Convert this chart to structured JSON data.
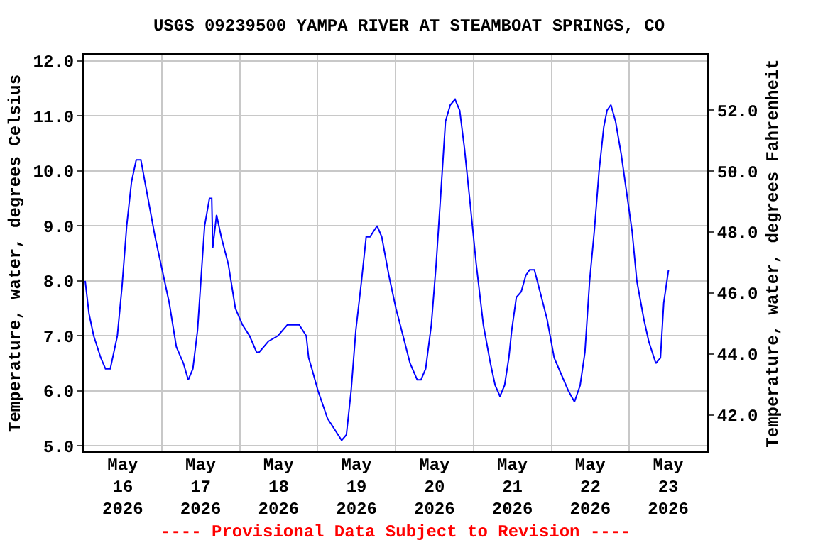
{
  "chart_data": {
    "type": "line",
    "title": "USGS 09239500 YAMPA RIVER AT STEAMBOAT SPRINGS, CO",
    "ylabel": "Temperature, water, degrees Celsius",
    "y2label": "Temperature, water, degrees Fahrenheit",
    "annotations": [
      "---- Provisional Data Subject to Revision ----"
    ],
    "x": [
      "2026-05-16T00:26",
      "2026-05-16T01:37",
      "2026-05-16T03:03",
      "2026-05-16T05:14",
      "2026-05-16T06:41",
      "2026-05-16T08:10",
      "2026-05-16T10:20",
      "2026-05-16T11:47",
      "2026-05-16T13:13",
      "2026-05-16T14:42",
      "2026-05-16T16:09",
      "2026-05-16T17:35",
      "2026-05-16T19:46",
      "2026-05-16T21:57",
      "2026-05-17T00:08",
      "2026-05-17T02:19",
      "2026-05-17T04:30",
      "2026-05-17T06:41",
      "2026-05-17T08:10",
      "2026-05-17T09:36",
      "2026-05-17T11:02",
      "2026-05-17T12:31",
      "2026-05-17T13:13",
      "2026-05-17T14:42",
      "2026-05-17T15:24",
      "2026-05-17T15:43",
      "2026-05-17T16:53",
      "2026-05-17T18:20",
      "2026-05-17T20:31",
      "2026-05-17T22:41",
      "2026-05-18T00:52",
      "2026-05-18T03:03",
      "2026-05-18T05:14",
      "2026-05-18T05:59",
      "2026-05-18T08:52",
      "2026-05-18T11:47",
      "2026-05-18T14:42",
      "2026-05-18T16:53",
      "2026-05-18T18:20",
      "2026-05-18T20:31",
      "2026-05-18T21:15",
      "2026-05-18T22:15",
      "2026-05-19T00:08",
      "2026-05-19T03:03",
      "2026-05-19T05:14",
      "2026-05-19T07:25",
      "2026-05-19T08:52",
      "2026-05-19T10:20",
      "2026-05-19T11:47",
      "2026-05-19T13:32",
      "2026-05-19T14:58",
      "2026-05-19T16:09",
      "2026-05-19T18:20",
      "2026-05-19T19:46",
      "2026-05-19T21:57",
      "2026-05-20T00:08",
      "2026-05-20T02:19",
      "2026-05-20T04:29",
      "2026-05-20T06:41",
      "2026-05-20T07:51",
      "2026-05-20T09:17",
      "2026-05-20T11:02",
      "2026-05-20T12:31",
      "2026-05-20T13:58",
      "2026-05-20T15:24",
      "2026-05-20T16:53",
      "2026-05-20T18:20",
      "2026-05-20T19:46",
      "2026-05-20T21:15",
      "2026-05-20T23:00",
      "2026-05-21T00:52",
      "2026-05-21T03:03",
      "2026-05-21T05:14",
      "2026-05-21T06:41",
      "2026-05-21T08:10",
      "2026-05-21T09:36",
      "2026-05-21T10:54",
      "2026-05-21T11:47",
      "2026-05-21T13:13",
      "2026-05-21T14:42",
      "2026-05-21T16:09",
      "2026-05-21T17:19",
      "2026-05-21T18:46",
      "2026-05-21T20:31",
      "2026-05-21T22:41",
      "2026-05-22T00:52",
      "2026-05-22T03:03",
      "2026-05-22T05:14",
      "2026-05-22T07:07",
      "2026-05-22T08:52",
      "2026-05-22T10:20",
      "2026-05-22T11:47",
      "2026-05-22T13:13",
      "2026-05-22T14:42",
      "2026-05-22T16:09",
      "2026-05-22T17:09",
      "2026-05-22T18:20",
      "2026-05-22T19:46",
      "2026-05-22T21:31",
      "2026-05-22T23:26",
      "2026-05-23T00:52",
      "2026-05-23T02:19",
      "2026-05-23T04:29",
      "2026-05-23T05:59",
      "2026-05-23T08:10",
      "2026-05-23T09:36",
      "2026-05-23T10:36",
      "2026-05-23T12:05"
    ],
    "series": [
      {
        "color": "#0000ff",
        "values": [
          8.0,
          7.4,
          7.0,
          6.6,
          6.4,
          6.4,
          7.0,
          7.9,
          9.0,
          9.8,
          10.2,
          10.2,
          9.5,
          8.8,
          8.2,
          7.6,
          6.8,
          6.5,
          6.2,
          6.4,
          7.1,
          8.4,
          9.0,
          9.5,
          9.5,
          8.6,
          9.2,
          8.8,
          8.3,
          7.5,
          7.2,
          7.0,
          6.7,
          6.7,
          6.9,
          7.0,
          7.2,
          7.2,
          7.2,
          7.0,
          6.6,
          6.4,
          6.0,
          5.5,
          5.3,
          5.1,
          5.2,
          6.0,
          7.1,
          8.0,
          8.8,
          8.8,
          9.0,
          8.8,
          8.1,
          7.5,
          7.0,
          6.5,
          6.2,
          6.2,
          6.4,
          7.2,
          8.3,
          9.6,
          10.9,
          11.2,
          11.3,
          11.1,
          10.4,
          9.4,
          8.3,
          7.2,
          6.5,
          6.1,
          5.9,
          6.1,
          6.6,
          7.1,
          7.7,
          7.8,
          8.1,
          8.2,
          8.2,
          7.8,
          7.3,
          6.6,
          6.3,
          6.0,
          5.8,
          6.1,
          6.7,
          8.0,
          8.9,
          10.0,
          10.8,
          11.1,
          11.2,
          10.9,
          10.3,
          9.5,
          8.9,
          8.0,
          7.3,
          6.9,
          6.5,
          6.6,
          7.6,
          8.2
        ]
      }
    ],
    "xlim": [
      "2026-05-16T00:00",
      "2026-05-24T00:00"
    ],
    "xticks": [
      {
        "value": "2026-05-16T00:00",
        "label": null
      },
      {
        "value": "2026-05-16T12:00",
        "label": "May\n16\n2026"
      },
      {
        "value": "2026-05-17T00:00",
        "label": null
      },
      {
        "value": "2026-05-17T12:00",
        "label": "May\n17\n2026"
      },
      {
        "value": "2026-05-18T00:00",
        "label": null
      },
      {
        "value": "2026-05-18T12:00",
        "label": "May\n18\n2026"
      },
      {
        "value": "2026-05-19T00:00",
        "label": null
      },
      {
        "value": "2026-05-19T12:00",
        "label": "May\n19\n2026"
      },
      {
        "value": "2026-05-20T00:00",
        "label": null
      },
      {
        "value": "2026-05-20T12:00",
        "label": "May\n20\n2026"
      },
      {
        "value": "2026-05-21T00:00",
        "label": null
      },
      {
        "value": "2026-05-21T12:00",
        "label": "May\n21\n2026"
      },
      {
        "value": "2026-05-22T00:00",
        "label": null
      },
      {
        "value": "2026-05-22T12:00",
        "label": "May\n22\n2026"
      },
      {
        "value": "2026-05-23T00:00",
        "label": null
      },
      {
        "value": "2026-05-23T12:00",
        "label": "May\n23\n2026"
      },
      {
        "value": "2026-05-24T00:00",
        "label": null
      }
    ],
    "ylim": [
      4.9,
      12.1
    ],
    "yticks": [
      {
        "value": 5,
        "label": "5.0"
      },
      {
        "value": 6,
        "label": "6.0"
      },
      {
        "value": 7,
        "label": "7.0"
      },
      {
        "value": 8,
        "label": "8.0"
      },
      {
        "value": 9,
        "label": "9.0"
      },
      {
        "value": 10,
        "label": "10.0"
      },
      {
        "value": 11,
        "label": "11.0"
      },
      {
        "value": 12,
        "label": "12.0"
      }
    ],
    "y2lim": [
      40.8,
      53.8
    ],
    "y2ticks": [
      {
        "value": 42,
        "label": "42.0"
      },
      {
        "value": 44,
        "label": "44.0"
      },
      {
        "value": 46,
        "label": "46.0"
      },
      {
        "value": 48,
        "label": "48.0"
      },
      {
        "value": 50,
        "label": "50.0"
      },
      {
        "value": 52,
        "label": "52.0"
      }
    ],
    "grid": true,
    "line_style": "solid",
    "marker": "none"
  }
}
